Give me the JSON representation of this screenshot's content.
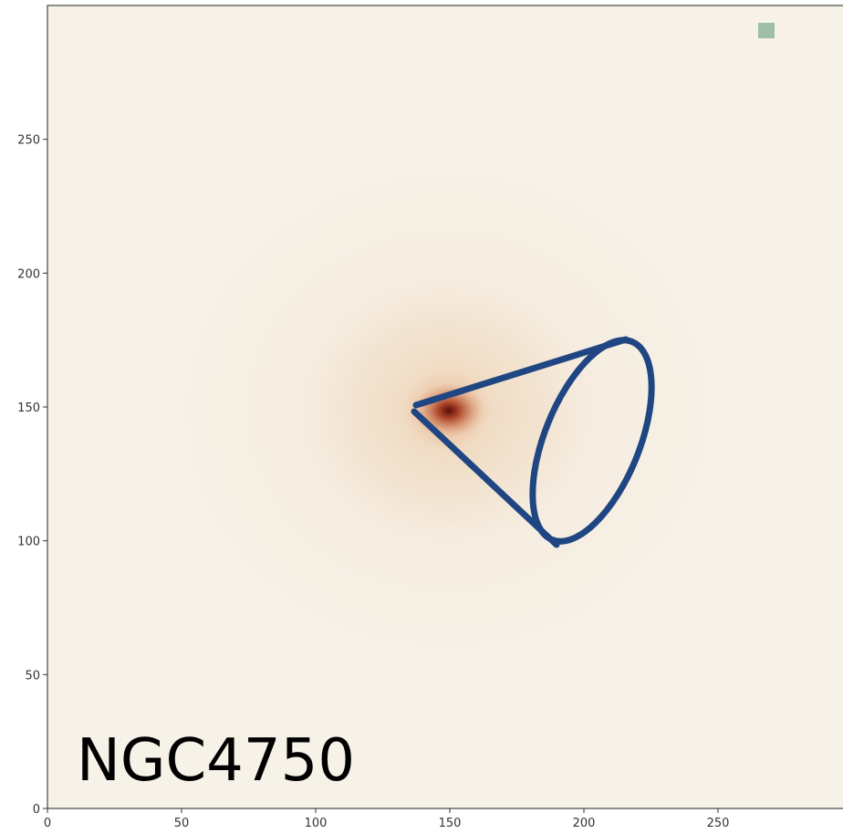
{
  "chart_data": {
    "type": "image",
    "annotation": "NGC4750",
    "xlim": [
      0,
      300
    ],
    "ylim": [
      0,
      300
    ],
    "xticks": [
      0,
      50,
      100,
      150,
      200,
      250
    ],
    "yticks": [
      0,
      50,
      100,
      150,
      200,
      250
    ]
  }
}
